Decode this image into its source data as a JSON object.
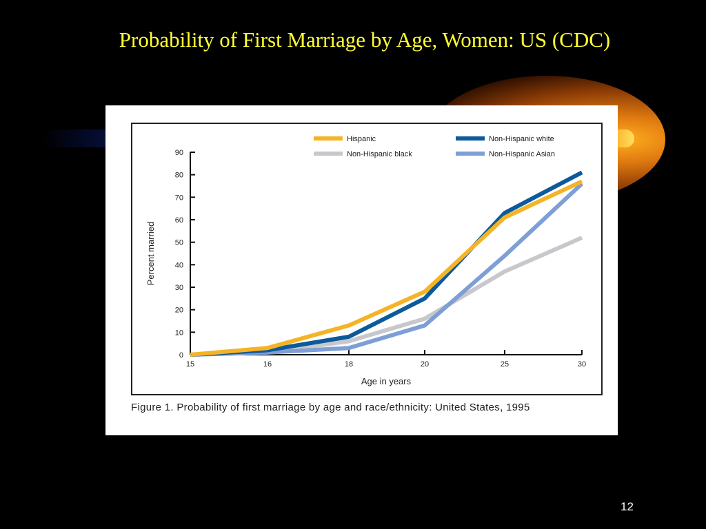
{
  "slide": {
    "title": "Probability of First Marriage by Age, Women: US (CDC)",
    "page_number": "12",
    "accent_color": "#ffff33"
  },
  "figure": {
    "caption": "Figure 1. Probability of first marriage by age and race/ethnicity: United States, 1995"
  },
  "chart_data": {
    "type": "line",
    "title": "",
    "xlabel": "Age in years",
    "ylabel": "Percent married",
    "x": [
      "15",
      "16",
      "18",
      "20",
      "25",
      "30"
    ],
    "ylim": [
      0,
      90
    ],
    "yticks": [
      0,
      10,
      20,
      30,
      40,
      50,
      60,
      70,
      80,
      90
    ],
    "grid": false,
    "legend_position": "top-right",
    "series": [
      {
        "name": "Hispanic",
        "color": "#f5b326",
        "values": [
          0,
          3,
          13,
          28,
          61,
          77
        ]
      },
      {
        "name": "Non-Hispanic white",
        "color": "#0b5a9c",
        "values": [
          0,
          2,
          8,
          25,
          63,
          81
        ]
      },
      {
        "name": "Non-Hispanic black",
        "color": "#c8c8cc",
        "values": [
          0,
          1,
          6,
          16,
          37,
          52
        ]
      },
      {
        "name": "Non-Hispanic Asian",
        "color": "#7d9fd6",
        "values": [
          0,
          1,
          3,
          13,
          44,
          76
        ]
      }
    ]
  }
}
